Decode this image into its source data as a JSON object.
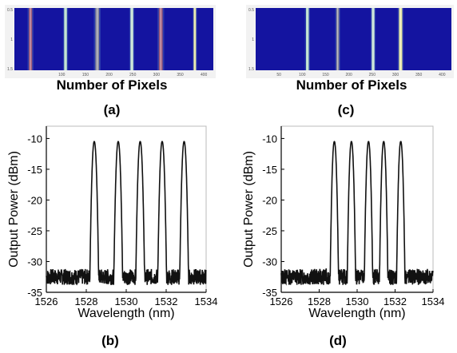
{
  "figure": {
    "captions": [
      "(a)",
      "(b)",
      "(c)",
      "(d)"
    ]
  },
  "chart_data": [
    {
      "id": "a",
      "type": "heatmap",
      "xlabel": "Number of Pixels",
      "xlim": [
        0,
        420
      ],
      "x_ticks": [
        100,
        150,
        200,
        250,
        300,
        350,
        400
      ],
      "x_tick_labels": [
        "100",
        "150",
        "200",
        "250",
        "300",
        "350",
        "400"
      ],
      "y_ticks": [
        "0.5",
        "1",
        "1.5"
      ],
      "background_color": "#1414a0",
      "stripes": [
        {
          "center": 34,
          "width": 7,
          "color": "#a05a78"
        },
        {
          "center": 108,
          "width": 6,
          "color": "#b4dcc8"
        },
        {
          "center": 175,
          "width": 8,
          "color": "#8a8a9a"
        },
        {
          "center": 248,
          "width": 6,
          "color": "#c0e0d0"
        },
        {
          "center": 309,
          "width": 8,
          "color": "#a05a78"
        },
        {
          "center": 381,
          "width": 5,
          "color": "#e6e6a0"
        }
      ],
      "caption": "(a)"
    },
    {
      "id": "b",
      "type": "line",
      "title": "",
      "xlabel": "Wavelength (nm)",
      "ylabel": "Output Power (dBm)",
      "xlim": [
        1526,
        1534
      ],
      "ylim": [
        -35,
        -8
      ],
      "x_ticks": [
        1526,
        1528,
        1530,
        1532,
        1534
      ],
      "y_ticks": [
        -10,
        -15,
        -20,
        -25,
        -30,
        -35
      ],
      "peaks_nm": [
        1528.4,
        1529.6,
        1530.7,
        1531.8,
        1532.9
      ],
      "peak_power_dbm": -10.5,
      "noise_floor_dbm": -32.5,
      "caption": "(b)"
    },
    {
      "id": "c",
      "type": "heatmap",
      "xlabel": "Number of Pixels",
      "xlim": [
        0,
        420
      ],
      "x_ticks": [
        50,
        100,
        150,
        200,
        250,
        300,
        350,
        400
      ],
      "x_tick_labels": [
        "50",
        "100",
        "150",
        "200",
        "250",
        "300",
        "350",
        "400"
      ],
      "y_ticks": [
        "0.5",
        "1",
        "1.5"
      ],
      "background_color": "#1414a0",
      "stripes": [
        {
          "center": 111,
          "width": 6,
          "color": "#b4dcc8"
        },
        {
          "center": 176,
          "width": 6,
          "color": "#8a8a9a"
        },
        {
          "center": 252,
          "width": 6,
          "color": "#c0e0d0"
        },
        {
          "center": 311,
          "width": 7,
          "color": "#e6e6a0"
        }
      ],
      "caption": "(c)"
    },
    {
      "id": "d",
      "type": "line",
      "title": "",
      "xlabel": "Wavelength (nm)",
      "ylabel": "Output Power (dBm)",
      "xlim": [
        1526,
        1534
      ],
      "ylim": [
        -35,
        -8
      ],
      "x_ticks": [
        1526,
        1528,
        1530,
        1532,
        1534
      ],
      "y_ticks": [
        -10,
        -15,
        -20,
        -25,
        -30,
        -35
      ],
      "peaks_nm": [
        1528.8,
        1529.7,
        1530.6,
        1531.4,
        1532.3
      ],
      "peak_power_dbm": -10.5,
      "noise_floor_dbm": -32.5,
      "caption": "(d)"
    }
  ]
}
